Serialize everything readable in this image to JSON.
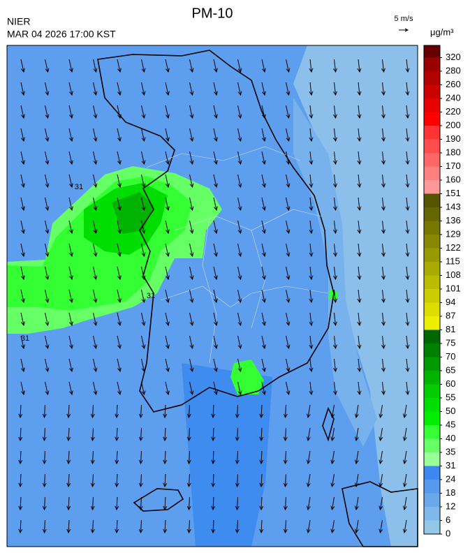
{
  "header": {
    "agency": "NIER",
    "title": "PM-10",
    "time": "MAR 04 2026 17:00 KST"
  },
  "wind_scale": "5 m/s",
  "contour_labels": [
    "31",
    "31",
    "31"
  ],
  "colorbar": {
    "unit": "μg/m³",
    "levels": [
      0,
      6,
      12,
      18,
      24,
      31,
      35,
      40,
      45,
      50,
      55,
      60,
      65,
      70,
      75,
      81,
      87,
      94,
      101,
      108,
      115,
      122,
      129,
      136,
      143,
      151,
      160,
      170,
      180,
      190,
      200,
      220,
      240,
      260,
      280,
      320
    ],
    "colors": [
      "#93c8e8",
      "#7fb8ea",
      "#6aa8ec",
      "#5799ee",
      "#3d88f0",
      "#99ff99",
      "#66ff66",
      "#33ff33",
      "#00ee00",
      "#00dd00",
      "#00cc00",
      "#00b300",
      "#009900",
      "#008000",
      "#006600",
      "#eeee00",
      "#dddd00",
      "#cccc00",
      "#bbbb00",
      "#aaaa00",
      "#999900",
      "#888800",
      "#777700",
      "#666600",
      "#555500",
      "#ff9999",
      "#ff8080",
      "#ff6666",
      "#ff4d4d",
      "#ff3333",
      "#ff0000",
      "#e60000",
      "#cc0000",
      "#b30000",
      "#990000",
      "#660000"
    ]
  }
}
